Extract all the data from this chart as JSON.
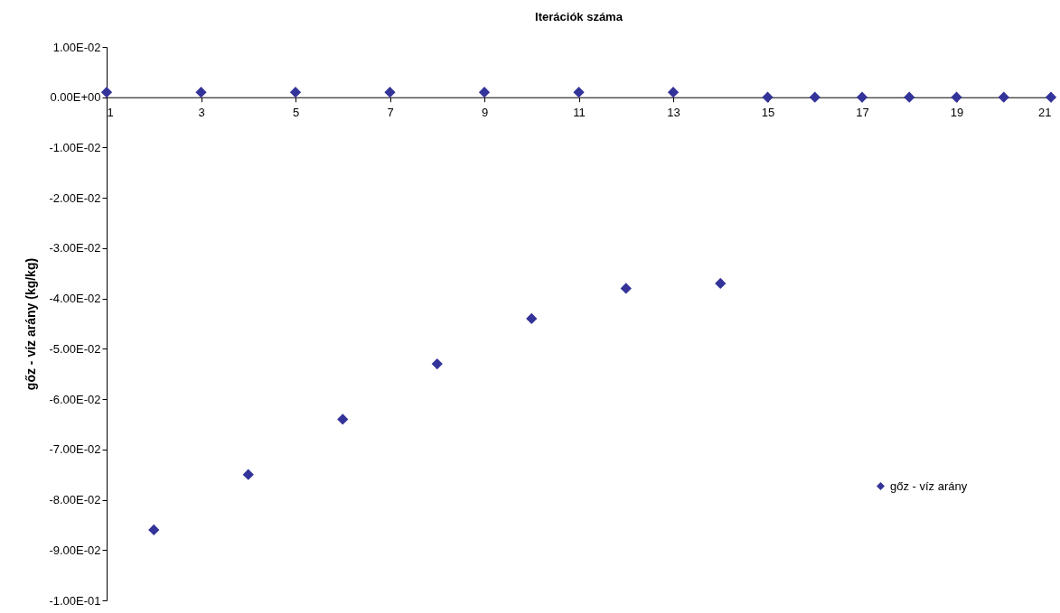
{
  "chart_data": {
    "type": "scatter",
    "xlabel": "Iterációk száma",
    "ylabel": "gőz - víz arány (kg/kg)",
    "x": [
      1,
      2,
      3,
      4,
      5,
      6,
      7,
      8,
      9,
      10,
      11,
      12,
      13,
      14,
      15,
      16,
      17,
      18,
      19,
      20,
      21
    ],
    "series": [
      {
        "name": "gőz - víz arány",
        "color": "#333399",
        "values": [
          0.001,
          -0.086,
          0.001,
          -0.075,
          0.001,
          -0.064,
          0.001,
          -0.053,
          0.001,
          -0.044,
          0.001,
          -0.038,
          0.001,
          -0.037,
          0,
          0,
          0,
          0,
          0,
          0,
          0
        ]
      }
    ],
    "xlim": [
      1,
      21
    ],
    "xticks": [
      1,
      3,
      5,
      7,
      9,
      11,
      13,
      15,
      17,
      19,
      21
    ],
    "ylim": [
      -0.1,
      0.01
    ],
    "yticks": [
      {
        "value": 0.01,
        "label": "1.00E-02"
      },
      {
        "value": 0,
        "label": "0.00E+00"
      },
      {
        "value": -0.01,
        "label": "-1.00E-02"
      },
      {
        "value": -0.02,
        "label": "-2.00E-02"
      },
      {
        "value": -0.03,
        "label": "-3.00E-02"
      },
      {
        "value": -0.04,
        "label": "-4.00E-02"
      },
      {
        "value": -0.05,
        "label": "-5.00E-02"
      },
      {
        "value": -0.06,
        "label": "-6.00E-02"
      },
      {
        "value": -0.07,
        "label": "-7.00E-02"
      },
      {
        "value": -0.08,
        "label": "-8.00E-02"
      },
      {
        "value": -0.09,
        "label": "-9.00E-02"
      },
      {
        "value": -0.1,
        "label": "-1.00E-01"
      }
    ],
    "marker": "diamond",
    "legend": "right",
    "grid": false
  }
}
